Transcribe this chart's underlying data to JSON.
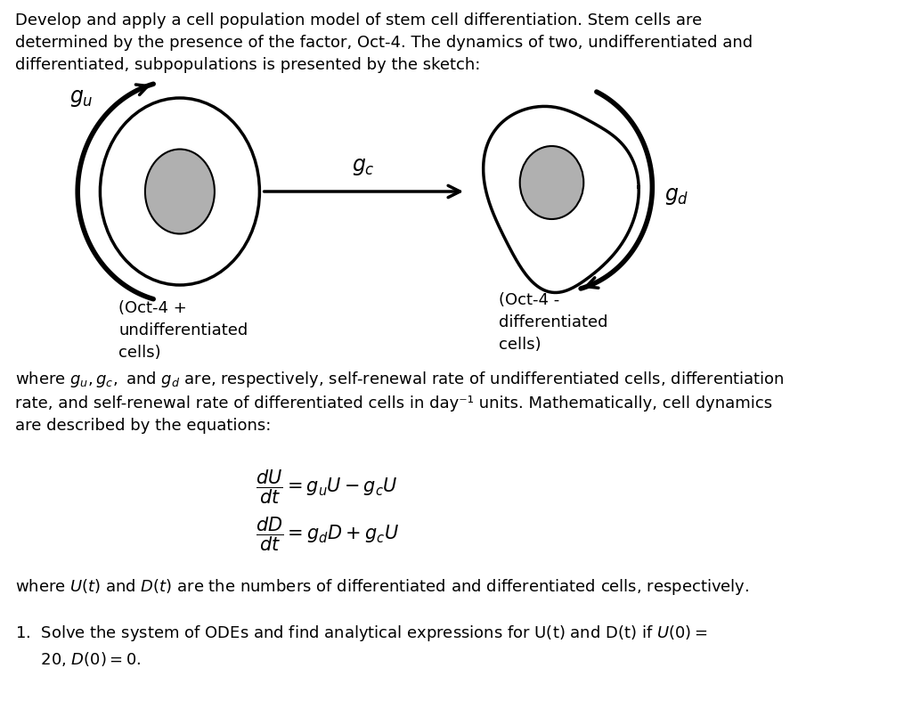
{
  "bg_color": "#ffffff",
  "title_text": "Develop and apply a cell population model of stem cell differentiation. Stem cells are\ndetermined by the presence of the factor, Oct-4. The dynamics of two, undifferentiated and\ndifferentiated, subpopulations is presented by the sketch:",
  "label_left": "(Oct-4 +\nundifferentiated\ncells)",
  "label_right": "(Oct-4 -\ndifferentiated\ncells)",
  "gc_label": "$g_c$",
  "gu_label": "$g_u$",
  "gd_label": "$g_d$",
  "where_text1": "where $g_u, g_c,$ and $g_d$ are, respectively, self-renewal rate of undifferentiated cells, differentiation\nrate, and self-renewal rate of differentiated cells in day⁻¹ units. Mathematically, cell dynamics\nare described by the equations:",
  "where_text2": "where $U(t)$ and $D(t)$ are the numbers of differentiated and differentiated cells, respectively.",
  "question": "1.  Solve the system of ODEs and find analytical expressions for U(t) and D(t) if $U(0) =$\n     20, $D(0) = 0$."
}
